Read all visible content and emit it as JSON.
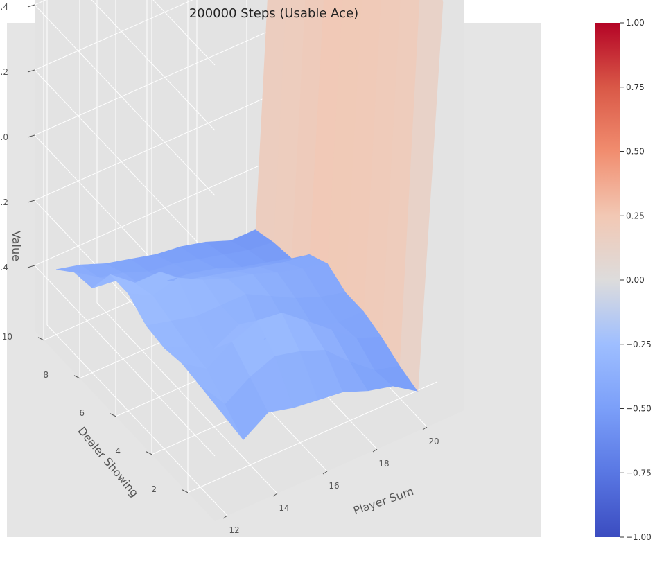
{
  "chart_data": {
    "type": "surface3d",
    "title": "200000 Steps (Usable Ace)",
    "xlabel": "Player Sum",
    "ylabel": "Dealer Showing",
    "zlabel": "Value",
    "x": [
      12,
      13,
      14,
      15,
      16,
      17,
      18,
      19,
      20,
      21
    ],
    "y": [
      1,
      2,
      3,
      4,
      5,
      6,
      7,
      8,
      9,
      10
    ],
    "x_ticks": [
      "12",
      "14",
      "16",
      "18",
      "20"
    ],
    "y_ticks": [
      "2",
      "4",
      "6",
      "8",
      "10"
    ],
    "z_ticks": [
      "−0.4",
      "−0.2",
      "0.0",
      "0.2",
      "0.4",
      "0.6",
      "0.8"
    ],
    "values": [
      [
        -0.3,
        -0.43,
        -0.38,
        -0.4,
        -0.41,
        -0.42,
        -0.45,
        -0.47,
        -0.52,
        0.64
      ],
      [
        -0.29,
        -0.38,
        -0.33,
        -0.3,
        -0.32,
        -0.35,
        -0.42,
        -0.48,
        -0.5,
        0.88
      ],
      [
        -0.28,
        -0.33,
        -0.28,
        -0.25,
        -0.26,
        -0.32,
        -0.38,
        -0.44,
        -0.47,
        0.88
      ],
      [
        -0.29,
        -0.32,
        -0.36,
        -0.32,
        -0.4,
        -0.4,
        -0.43,
        -0.45,
        -0.45,
        0.9
      ],
      [
        -0.28,
        -0.3,
        -0.32,
        -0.32,
        -0.32,
        -0.36,
        -0.4,
        -0.43,
        -0.45,
        0.89
      ],
      [
        -0.24,
        -0.28,
        -0.26,
        -0.3,
        -0.33,
        -0.35,
        -0.38,
        -0.4,
        -0.42,
        0.9
      ],
      [
        -0.24,
        -0.3,
        -0.3,
        -0.36,
        -0.38,
        -0.4,
        -0.42,
        -0.44,
        -0.45,
        0.9
      ],
      [
        -0.34,
        -0.35,
        -0.4,
        -0.42,
        -0.43,
        -0.45,
        -0.48,
        -0.5,
        -0.52,
        0.9
      ],
      [
        -0.35,
        -0.4,
        -0.42,
        -0.45,
        -0.46,
        -0.48,
        -0.5,
        -0.52,
        -0.53,
        0.91
      ],
      [
        -0.4,
        -0.42,
        -0.45,
        -0.47,
        -0.49,
        -0.5,
        -0.52,
        -0.55,
        -0.55,
        0.9
      ]
    ],
    "colormap": "coolwarm",
    "colorbar": {
      "min": -1.0,
      "max": 1.0,
      "ticks": [
        "−1.00",
        "−0.75",
        "−0.50",
        "−0.25",
        "0.00",
        "0.25",
        "0.50",
        "0.75",
        "1.00"
      ]
    },
    "xlim": [
      12,
      21
    ],
    "ylim": [
      1,
      10
    ],
    "zlim": [
      -0.55,
      0.9
    ],
    "grid": true
  },
  "colors": {
    "pane_background": "#e5e5e5",
    "panel_background": "#e8e8e8",
    "grid": "#ffffff",
    "cmap_low": "#3b4cc0",
    "cmap_mid": "#dddcdc",
    "cmap_high": "#b40426"
  }
}
